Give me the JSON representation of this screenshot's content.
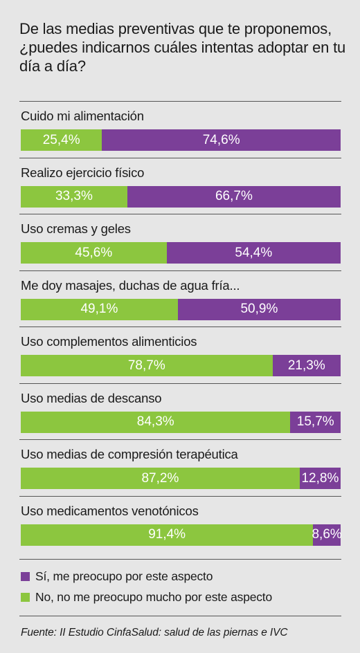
{
  "title": "De las medias preventivas que te proponemos, ¿puedes indicarnos cuáles intentas adoptar en tu día a día?",
  "legend": [
    {
      "label": "Sí, me preocupo por este aspecto",
      "color": "#7b3f98"
    },
    {
      "label": "No, no me preocupo mucho por este aspecto",
      "color": "#8cc63f"
    }
  ],
  "source": "Fuente: II Estudio CinfaSalud: salud de las piernas e IVC",
  "chart_data": {
    "type": "bar",
    "stacked": true,
    "orientation": "horizontal",
    "categories": [
      "Cuido mi alimentación",
      "Realizo ejercicio físico",
      "Uso cremas y geles",
      "Me doy masajes, duchas de agua fría...",
      "Uso complementos alimenticios",
      "Uso medias de descanso",
      "Uso medias de compresión terapéutica",
      "Uso medicamentos venotónicos"
    ],
    "series": [
      {
        "name": "No, no me preocupo mucho por este aspecto",
        "color": "#8cc63f",
        "values": [
          25.4,
          33.3,
          45.6,
          49.1,
          78.7,
          84.3,
          87.2,
          91.4
        ],
        "labels": [
          "25,4%",
          "33,3%",
          "45,6%",
          "49,1%",
          "78,7%",
          "84,3%",
          "87,2%",
          "91,4%"
        ]
      },
      {
        "name": "Sí, me preocupo por este aspecto",
        "color": "#7b3f98",
        "values": [
          74.6,
          66.7,
          54.4,
          50.9,
          21.3,
          15.7,
          12.8,
          8.6
        ],
        "labels": [
          "74,6%",
          "66,7%",
          "54,4%",
          "50,9%",
          "21,3%",
          "15,7%",
          "12,8%",
          "8,6%"
        ]
      }
    ]
  }
}
